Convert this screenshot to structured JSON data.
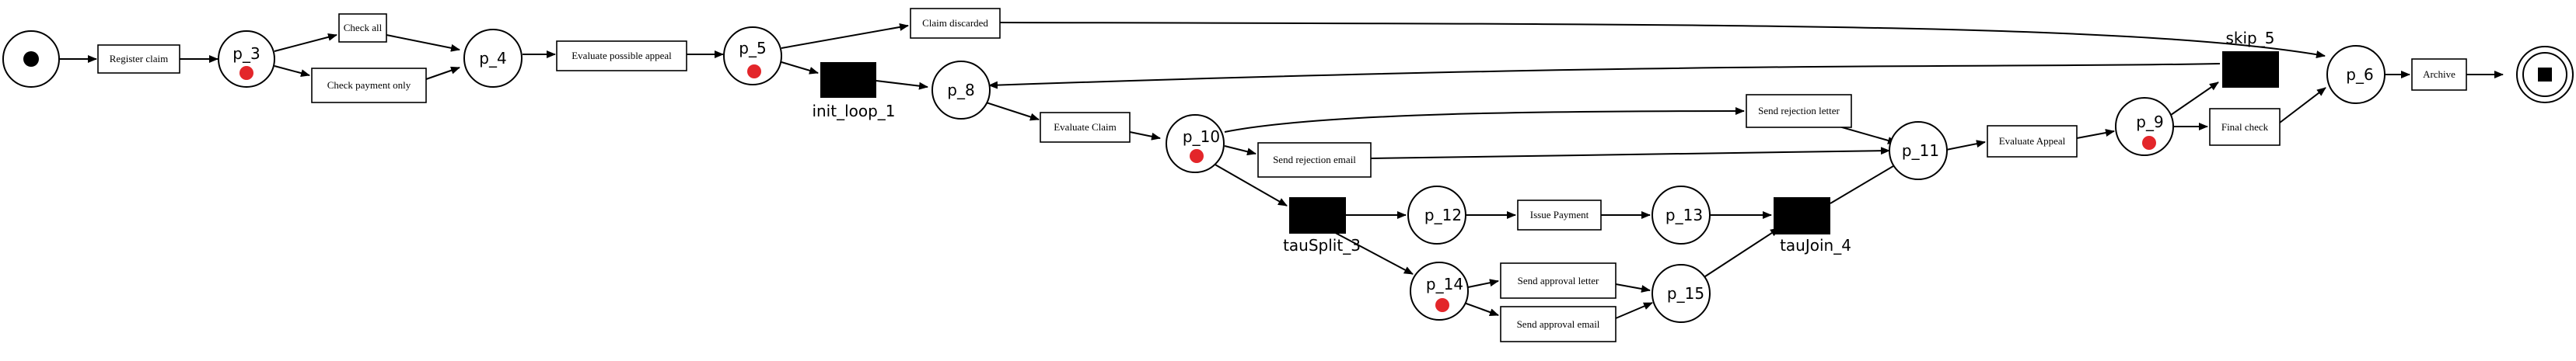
{
  "places": {
    "source": {
      "label": ""
    },
    "p_3": {
      "label": "p_3"
    },
    "p_4": {
      "label": "p_4"
    },
    "p_5": {
      "label": "p_5"
    },
    "p_8": {
      "label": "p_8"
    },
    "p_10": {
      "label": "p_10"
    },
    "p_11": {
      "label": "p_11"
    },
    "p_9": {
      "label": "p_9"
    },
    "p_6": {
      "label": "p_6"
    },
    "p_12": {
      "label": "p_12"
    },
    "p_13": {
      "label": "p_13"
    },
    "p_14": {
      "label": "p_14"
    },
    "p_15": {
      "label": "p_15"
    },
    "sink": {
      "label": ""
    }
  },
  "transitions": {
    "register_claim": "Register claim",
    "check_all": "Check all",
    "check_payment_only": "Check payment only",
    "evaluate_possible_appeal": "Evaluate possible appeal",
    "claim_discarded": "Claim discarded",
    "evaluate_claim": "Evaluate Claim",
    "send_rejection_letter": "Send rejection letter",
    "send_rejection_email": "Send rejection email",
    "evaluate_appeal": "Evaluate Appeal",
    "final_check": "Final check",
    "archive": "Archive",
    "issue_payment": "Issue Payment",
    "send_approval_letter": "Send approval letter",
    "send_approval_email": "Send approval email"
  },
  "silent_transitions": {
    "init_loop_1": "init_loop_1",
    "skip_5": "skip_5",
    "tauSplit_3": "tauSplit_3",
    "tauJoin_4": "tauJoin_4"
  },
  "colors": {
    "token": "#e3262a",
    "stroke": "#000000",
    "silent_fill": "#000000"
  }
}
